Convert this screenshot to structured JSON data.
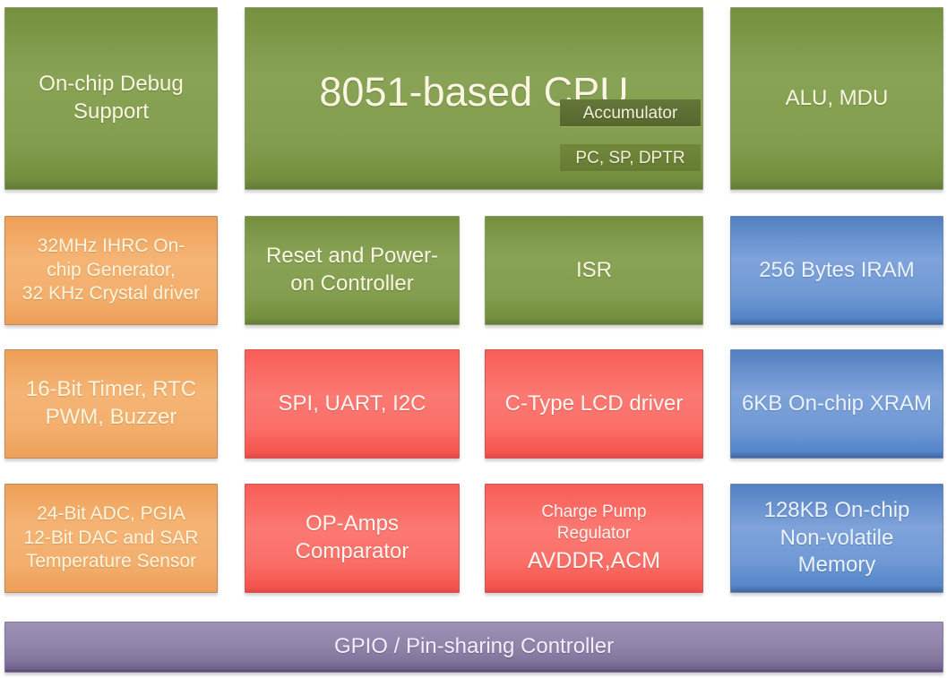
{
  "palette": {
    "green": "#7E9A46",
    "orange": "#F2A860",
    "red": "#FA665F",
    "blue": "#6D97D3",
    "purple": "#8E81A8",
    "accumulator_band_green": "#5B6C31",
    "registers_band_green": "#6C8238",
    "text_cream": "#FBF6E3"
  },
  "blocks": {
    "debug": {
      "label": "On-chip Debug\nSupport",
      "color": "green"
    },
    "cpu": {
      "label": "8051-based CPU",
      "color": "green",
      "accumulator_label": "Accumulator",
      "registers_label": "PC, SP, DPTR"
    },
    "alu": {
      "label": "ALU, MDU",
      "color": "green"
    },
    "clock": {
      "label": "32MHz IHRC On-\nchip Generator,\n32 KHz Crystal driver",
      "color": "orange"
    },
    "reset": {
      "label": "Reset and Power-\non Controller",
      "color": "green"
    },
    "isr": {
      "label": "ISR",
      "color": "green"
    },
    "iram": {
      "label": "256 Bytes IRAM",
      "color": "blue"
    },
    "timer": {
      "label": "16-Bit Timer, RTC\nPWM, Buzzer",
      "color": "orange"
    },
    "serial": {
      "label": "SPI, UART, I2C",
      "color": "red"
    },
    "lcd": {
      "label": "C-Type LCD driver",
      "color": "red"
    },
    "xram": {
      "label": "6KB On-chip XRAM",
      "color": "blue"
    },
    "adc": {
      "label": "24-Bit ADC, PGIA\n12-Bit DAC and SAR\nTemperature Sensor",
      "color": "orange"
    },
    "opamp": {
      "label": "OP-Amps\nComparator",
      "color": "red"
    },
    "charge_pump": {
      "label_small": "Charge Pump\nRegulator",
      "label_large": "AVDDR,ACM",
      "color": "red"
    },
    "nvm": {
      "label": "128KB On-chip\nNon-volatile\nMemory",
      "color": "blue"
    },
    "gpio": {
      "label": "GPIO / Pin-sharing Controller",
      "color": "purple"
    }
  }
}
